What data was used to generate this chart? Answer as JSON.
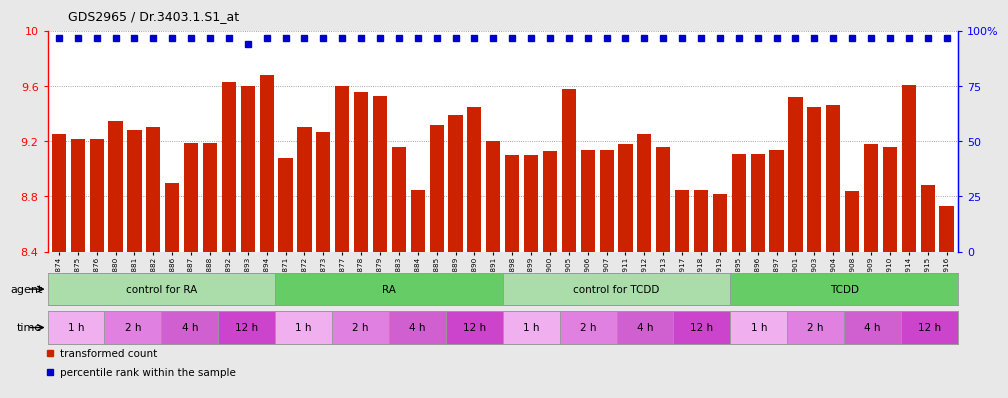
{
  "title": "GDS2965 / Dr.3403.1.S1_at",
  "samples": [
    "GSM228874",
    "GSM228875",
    "GSM228876",
    "GSM228880",
    "GSM228881",
    "GSM228882",
    "GSM228886",
    "GSM228887",
    "GSM228888",
    "GSM228892",
    "GSM228893",
    "GSM228894",
    "GSM228871",
    "GSM228872",
    "GSM228873",
    "GSM228877",
    "GSM228878",
    "GSM228879",
    "GSM228883",
    "GSM228884",
    "GSM228885",
    "GSM228889",
    "GSM228890",
    "GSM228891",
    "GSM228898",
    "GSM228899",
    "GSM228900",
    "GSM228905",
    "GSM228906",
    "GSM228907",
    "GSM228911",
    "GSM228912",
    "GSM228913",
    "GSM228917",
    "GSM228918",
    "GSM228919",
    "GSM228895",
    "GSM228896",
    "GSM228897",
    "GSM228901",
    "GSM228903",
    "GSM228904",
    "GSM228908",
    "GSM228909",
    "GSM228910",
    "GSM228914",
    "GSM228915",
    "GSM228916"
  ],
  "bar_values": [
    9.25,
    9.22,
    9.22,
    9.35,
    9.28,
    9.3,
    8.9,
    9.19,
    9.19,
    9.63,
    9.6,
    9.68,
    9.08,
    9.3,
    9.27,
    9.6,
    9.56,
    9.53,
    9.16,
    8.85,
    9.32,
    9.39,
    9.45,
    9.2,
    9.1,
    9.1,
    9.13,
    9.58,
    9.14,
    9.14,
    9.18,
    9.25,
    9.16,
    8.85,
    8.85,
    8.82,
    9.11,
    9.11,
    9.14,
    9.52,
    9.45,
    9.46,
    8.84,
    9.18,
    9.16,
    9.61,
    8.88,
    8.73
  ],
  "percentile_values": [
    97,
    97,
    97,
    97,
    97,
    97,
    97,
    97,
    97,
    97,
    94,
    97,
    97,
    97,
    97,
    97,
    97,
    97,
    97,
    97,
    97,
    97,
    97,
    97,
    97,
    97,
    97,
    97,
    97,
    97,
    97,
    97,
    97,
    97,
    97,
    97,
    97,
    97,
    97,
    97,
    97,
    97,
    97,
    97,
    97,
    97,
    97,
    97
  ],
  "bar_color": "#cc2200",
  "percentile_color": "#0000cc",
  "ylim_left": [
    8.4,
    10.0
  ],
  "ylim_right": [
    0,
    100
  ],
  "yticks_left": [
    8.4,
    8.8,
    9.2,
    9.6,
    10.0
  ],
  "yticks_right": [
    0,
    25,
    50,
    75,
    100
  ],
  "grid_values": [
    8.8,
    9.2,
    9.6
  ],
  "agents": [
    {
      "label": "control for RA",
      "start": 0,
      "end": 12,
      "color": "#aaddaa"
    },
    {
      "label": "RA",
      "start": 12,
      "end": 24,
      "color": "#66cc66"
    },
    {
      "label": "control for TCDD",
      "start": 24,
      "end": 36,
      "color": "#aaddaa"
    },
    {
      "label": "TCDD",
      "start": 36,
      "end": 48,
      "color": "#66cc66"
    }
  ],
  "times": [
    {
      "label": "1 h",
      "start": 0,
      "end": 3,
      "color": "#f0b0f0"
    },
    {
      "label": "2 h",
      "start": 3,
      "end": 6,
      "color": "#e080e0"
    },
    {
      "label": "4 h",
      "start": 6,
      "end": 9,
      "color": "#d060d0"
    },
    {
      "label": "12 h",
      "start": 9,
      "end": 12,
      "color": "#cc44cc"
    },
    {
      "label": "1 h",
      "start": 12,
      "end": 15,
      "color": "#f0b0f0"
    },
    {
      "label": "2 h",
      "start": 15,
      "end": 18,
      "color": "#e080e0"
    },
    {
      "label": "4 h",
      "start": 18,
      "end": 21,
      "color": "#d060d0"
    },
    {
      "label": "12 h",
      "start": 21,
      "end": 24,
      "color": "#cc44cc"
    },
    {
      "label": "1 h",
      "start": 24,
      "end": 27,
      "color": "#f0b0f0"
    },
    {
      "label": "2 h",
      "start": 27,
      "end": 30,
      "color": "#e080e0"
    },
    {
      "label": "4 h",
      "start": 30,
      "end": 33,
      "color": "#d060d0"
    },
    {
      "label": "12 h",
      "start": 33,
      "end": 36,
      "color": "#cc44cc"
    },
    {
      "label": "1 h",
      "start": 36,
      "end": 39,
      "color": "#f0b0f0"
    },
    {
      "label": "2 h",
      "start": 39,
      "end": 42,
      "color": "#e080e0"
    },
    {
      "label": "4 h",
      "start": 42,
      "end": 45,
      "color": "#d060d0"
    },
    {
      "label": "12 h",
      "start": 45,
      "end": 48,
      "color": "#cc44cc"
    }
  ],
  "agent_label": "agent",
  "time_label": "time",
  "legend_items": [
    {
      "label": "transformed count",
      "color": "#cc2200"
    },
    {
      "label": "percentile rank within the sample",
      "color": "#0000cc"
    }
  ],
  "background_color": "#e8e8e8",
  "plot_bg_color": "#ffffff",
  "tick_bg_color": "#d8d8d8"
}
